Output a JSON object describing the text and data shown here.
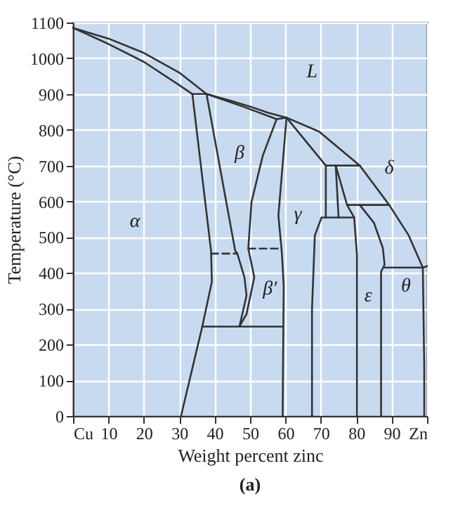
{
  "chart_data": {
    "type": "line",
    "xlabel": "Weight percent zinc",
    "ylabel": "Temperature (°C)",
    "xlim": [
      0,
      100
    ],
    "ylim": [
      0,
      1100
    ],
    "xticks": [
      {
        "value": 0,
        "label": "Cu"
      },
      10,
      20,
      30,
      40,
      50,
      60,
      70,
      80,
      90,
      {
        "value": 100,
        "label": "Zn"
      }
    ],
    "yticks": [
      0,
      100,
      200,
      300,
      400,
      500,
      600,
      700,
      800,
      900,
      1000,
      1100
    ],
    "grid": true,
    "annotations": [
      "L",
      "β",
      "α",
      "γ",
      "δ",
      "β′",
      "ε",
      "θ",
      "(a)"
    ],
    "series": [
      {
        "type": "line",
        "color": "#333333",
        "x": [
          0,
          10,
          20,
          30,
          37.7,
          45,
          50,
          55,
          60.3,
          69.5,
          81,
          89.3,
          94.8,
          98.8,
          100
        ],
        "values": [
          1085,
          1055,
          1015,
          960,
          900,
          880,
          865,
          848,
          834,
          795,
          700,
          590,
          505,
          415,
          419
        ]
      },
      {
        "type": "line",
        "color": "#333333",
        "x": [
          0,
          10,
          20,
          30,
          33.7
        ],
        "values": [
          1085,
          1040,
          990,
          925,
          900
        ]
      },
      {
        "type": "line",
        "color": "#333333",
        "x": [
          33.7,
          37.7,
          48,
          57.5,
          60.3
        ],
        "values": [
          900,
          900,
          865,
          830,
          834
        ]
      },
      {
        "type": "line",
        "color": "#333333",
        "x": [
          33.7,
          39,
          39.2,
          36.5,
          30.5
        ],
        "values": [
          900,
          460,
          375,
          250,
          0
        ]
      },
      {
        "type": "line",
        "color": "#333333",
        "x": [
          37.7,
          45.8,
          46.4,
          48.4,
          49,
          47
        ],
        "values": [
          900,
          462,
          454,
          388,
          337,
          250
        ]
      },
      {
        "type": "line",
        "color": "#333333",
        "line_style": "dashed",
        "x": [
          39,
          46.4
        ],
        "values": [
          454,
          454
        ]
      },
      {
        "type": "line",
        "color": "#333333",
        "line_style": "dashed",
        "x": [
          49.5,
          58.5
        ],
        "values": [
          468,
          468
        ]
      },
      {
        "type": "line",
        "color": "#333333",
        "x": [
          57.5,
          53.6,
          50.4,
          49.5,
          51.2,
          49,
          47
        ],
        "values": [
          830,
          728,
          598,
          468,
          388,
          285,
          250
        ]
      },
      {
        "type": "line",
        "color": "#333333",
        "x": [
          60.3,
          58,
          59,
          59.5,
          59.2
        ],
        "values": [
          834,
          560,
          454,
          364,
          0
        ]
      },
      {
        "type": "line",
        "color": "#333333",
        "x": [
          36.5,
          59.2
        ],
        "values": [
          250,
          250
        ]
      },
      {
        "type": "line",
        "color": "#333333",
        "x": [
          60.3,
          71.4,
          71.4
        ],
        "values": [
          834,
          700,
          555
        ]
      },
      {
        "type": "line",
        "color": "#333333",
        "x": [
          71.4,
          81
        ],
        "values": [
          700,
          700
        ]
      },
      {
        "type": "line",
        "color": "#333333",
        "x": [
          79.4,
          70.2,
          68.3,
          67.5,
          67.5
        ],
        "values": [
          555,
          555,
          505,
          300,
          0
        ]
      },
      {
        "type": "line",
        "color": "#333333",
        "x": [
          74.2,
          75
        ],
        "values": [
          700,
          555
        ]
      },
      {
        "type": "line",
        "color": "#333333",
        "x": [
          74.2,
          77.4,
          79.4,
          80.2,
          80.2
        ],
        "values": [
          700,
          590,
          555,
          450,
          0
        ]
      },
      {
        "type": "line",
        "color": "#333333",
        "x": [
          77.4,
          89.3
        ],
        "values": [
          590,
          590
        ]
      },
      {
        "type": "line",
        "color": "#333333",
        "x": [
          81,
          85,
          87.5,
          88,
          87,
          87
        ],
        "values": [
          590,
          540,
          470,
          423,
          403,
          0
        ]
      },
      {
        "type": "line",
        "color": "#333333",
        "x": [
          88,
          98.8,
          99.2,
          99.2
        ],
        "values": [
          415,
          415,
          140,
          0
        ]
      }
    ]
  }
}
